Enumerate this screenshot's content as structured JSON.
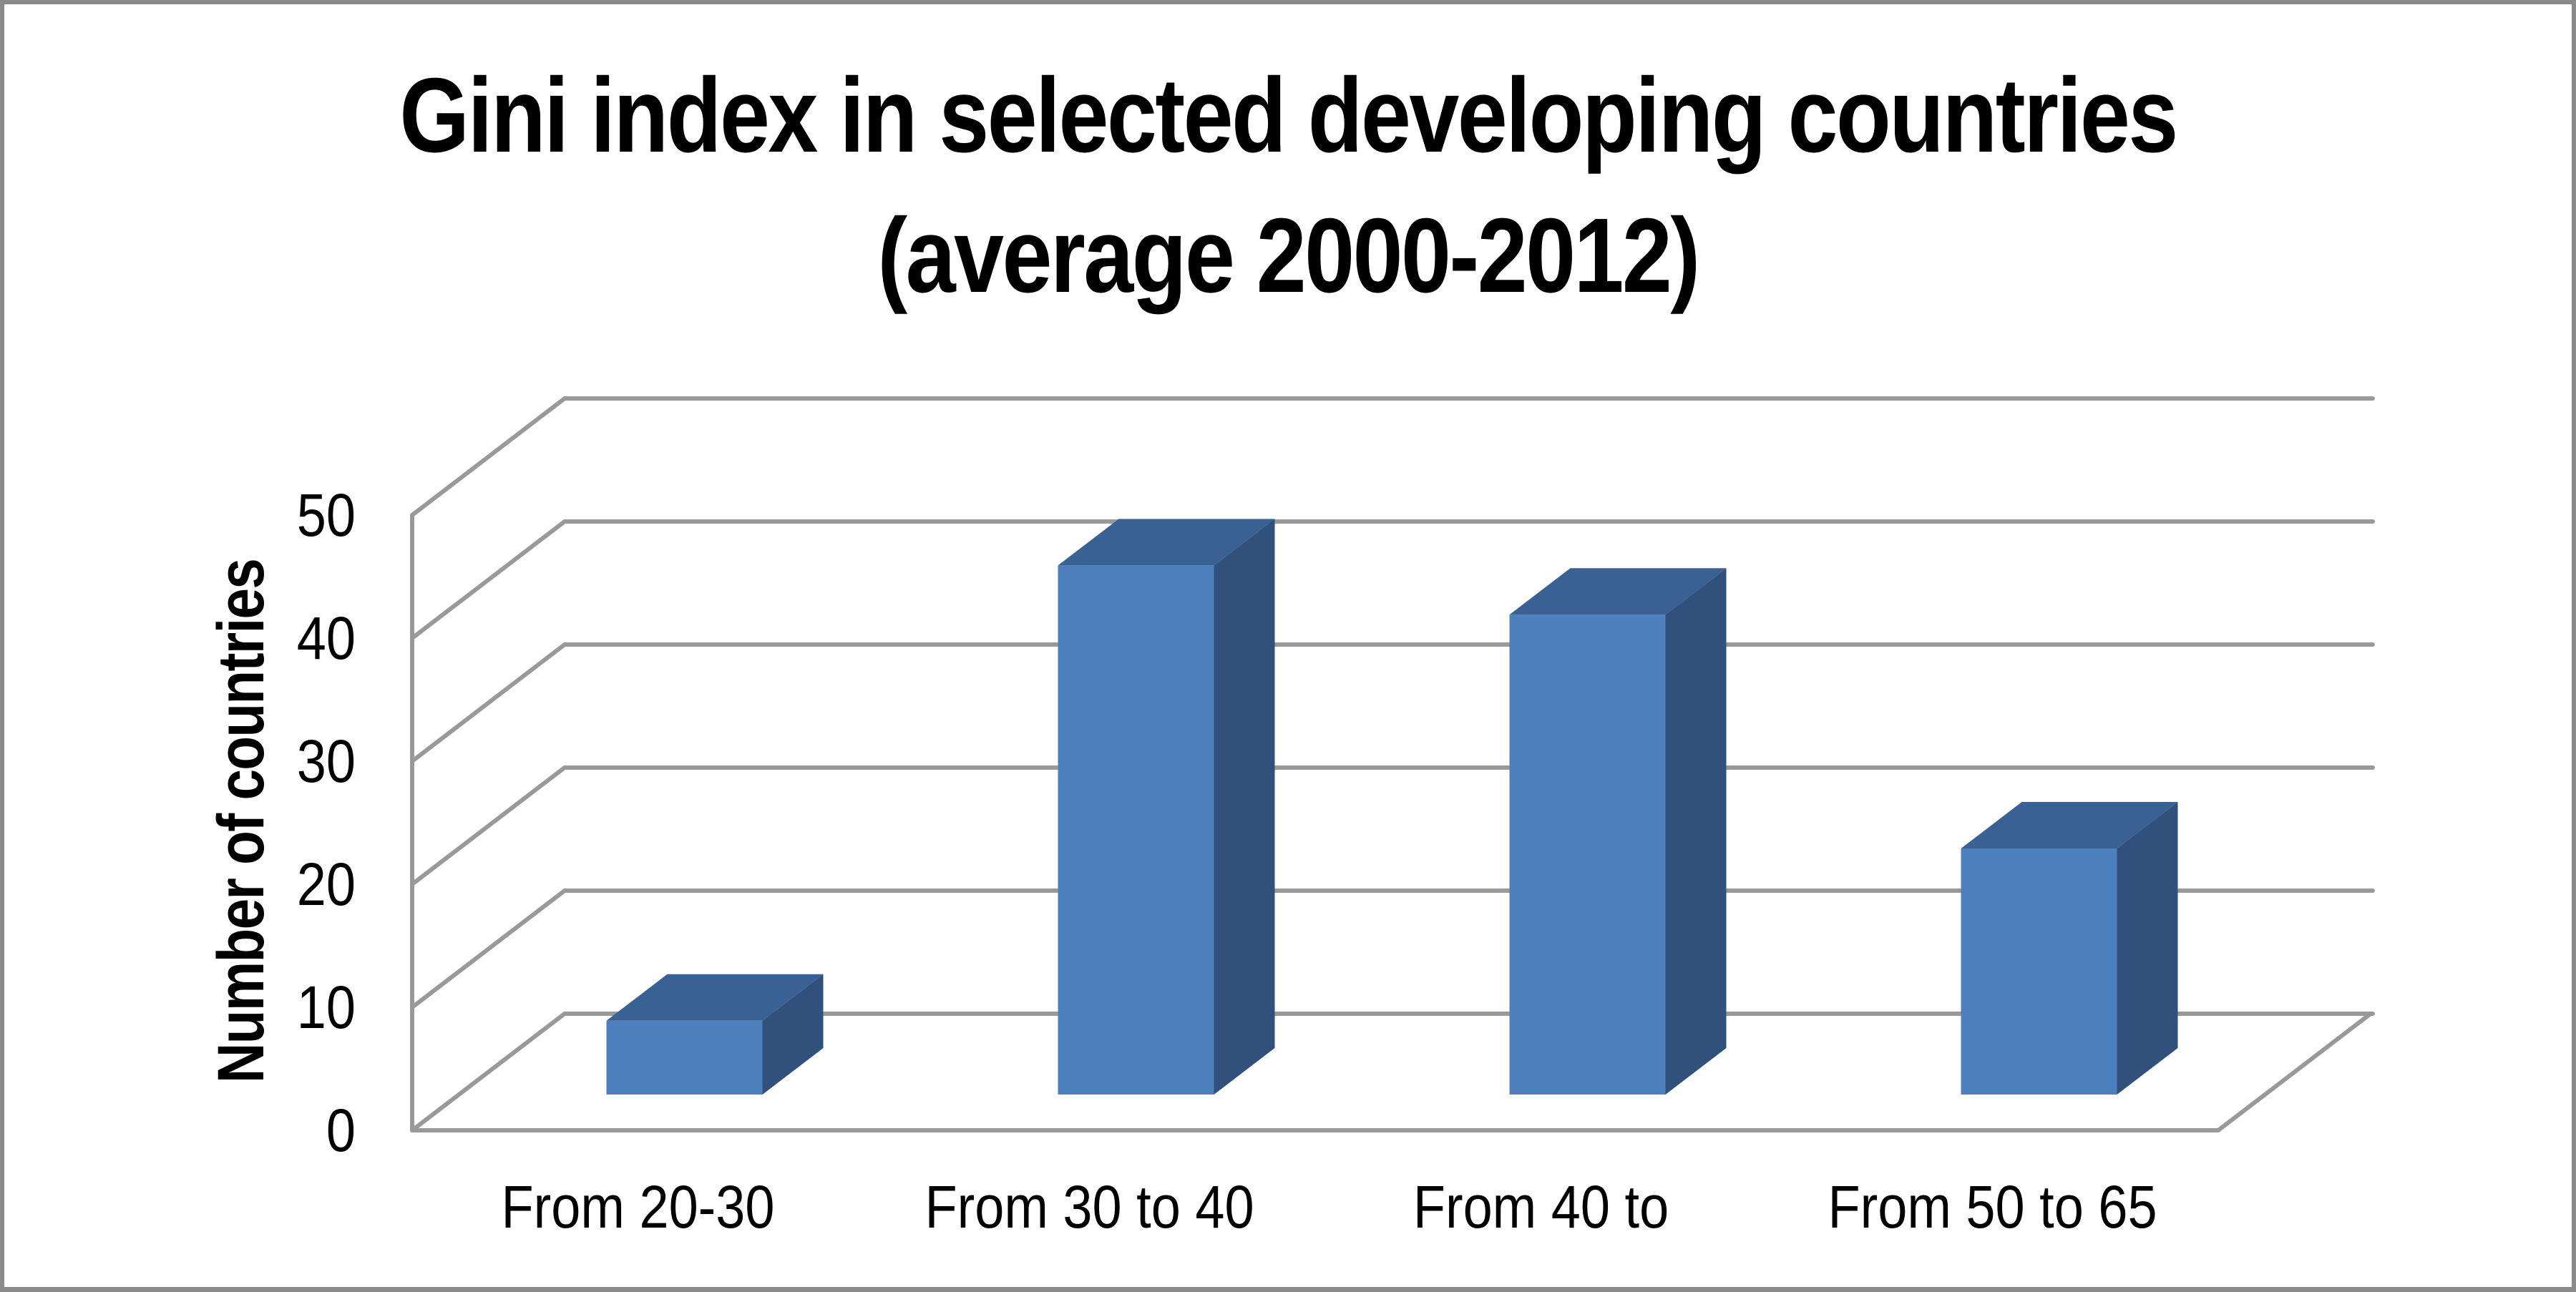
{
  "title": {
    "line1": "Gini index in selected developing countries",
    "line2": "(average 2000-2012)"
  },
  "chart_data": {
    "type": "bar",
    "style": "3d-column",
    "title": "Gini index in selected developing countries (average 2000-2012)",
    "categories": [
      "From 20-30",
      "From 30 to 40",
      "From 40 to",
      "From 50 to 65"
    ],
    "values": [
      6,
      43,
      39,
      20
    ],
    "series": [
      {
        "name": "Number of countries",
        "values": [
          6,
          43,
          39,
          20
        ]
      }
    ],
    "xlabel": "",
    "ylabel": "Number of countries",
    "ylim": [
      0,
      50
    ],
    "yticks": [
      0,
      10,
      20,
      30,
      40,
      50
    ],
    "grid": true,
    "legend": false,
    "colors": {
      "bar_front": "#4E80BD",
      "bar_top": "#3A6194",
      "bar_side": "#31517C",
      "gridline": "#999999",
      "text": "#000000",
      "frame": "#8A8A8A",
      "background": "#FFFFFF"
    }
  }
}
